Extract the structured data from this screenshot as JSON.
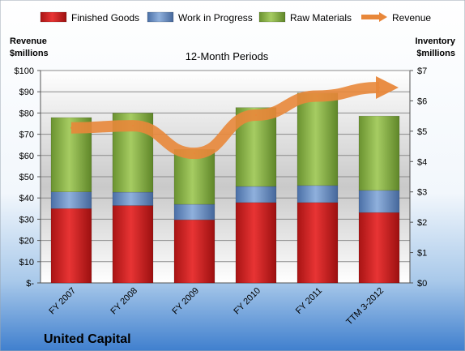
{
  "chart_data": {
    "type": "bar",
    "stacked": true,
    "title": "12-Month Periods",
    "brand": "United Capital",
    "categories": [
      "FY 2007",
      "FY 2008",
      "FY 2009",
      "FY 2010",
      "FY 2011",
      "TTM 3-2012"
    ],
    "series": [
      {
        "name": "Finished Goods",
        "axis": "right",
        "color": "#e02828",
        "values": [
          2.45,
          2.55,
          2.08,
          2.65,
          2.65,
          2.32
        ]
      },
      {
        "name": "Work in Progress",
        "axis": "right",
        "color": "#6a8ec6",
        "values": [
          0.55,
          0.44,
          0.51,
          0.53,
          0.56,
          0.73
        ]
      },
      {
        "name": "Raw Materials",
        "axis": "right",
        "color": "#8db84a",
        "values": [
          2.45,
          2.61,
          1.81,
          2.6,
          3.05,
          2.45
        ]
      },
      {
        "name": "Revenue",
        "axis": "left",
        "type": "line",
        "color": "#e8873a",
        "values": [
          73,
          74,
          61,
          79,
          88,
          92
        ]
      }
    ],
    "y_left": {
      "label_line1": "Revenue",
      "label_line2": "$millions",
      "range": [
        0,
        100
      ],
      "step": 10,
      "tick_labels": [
        "$-",
        "$10",
        "$20",
        "$30",
        "$40",
        "$50",
        "$60",
        "$70",
        "$80",
        "$90",
        "$100"
      ]
    },
    "y_right": {
      "label_line1": "Inventory",
      "label_line2": "$millions",
      "range": [
        0,
        7
      ],
      "step": 1,
      "tick_labels": [
        "$0",
        "$1",
        "$2",
        "$3",
        "$4",
        "$5",
        "$6",
        "$7"
      ]
    },
    "legend_position": "top",
    "grid": true
  }
}
